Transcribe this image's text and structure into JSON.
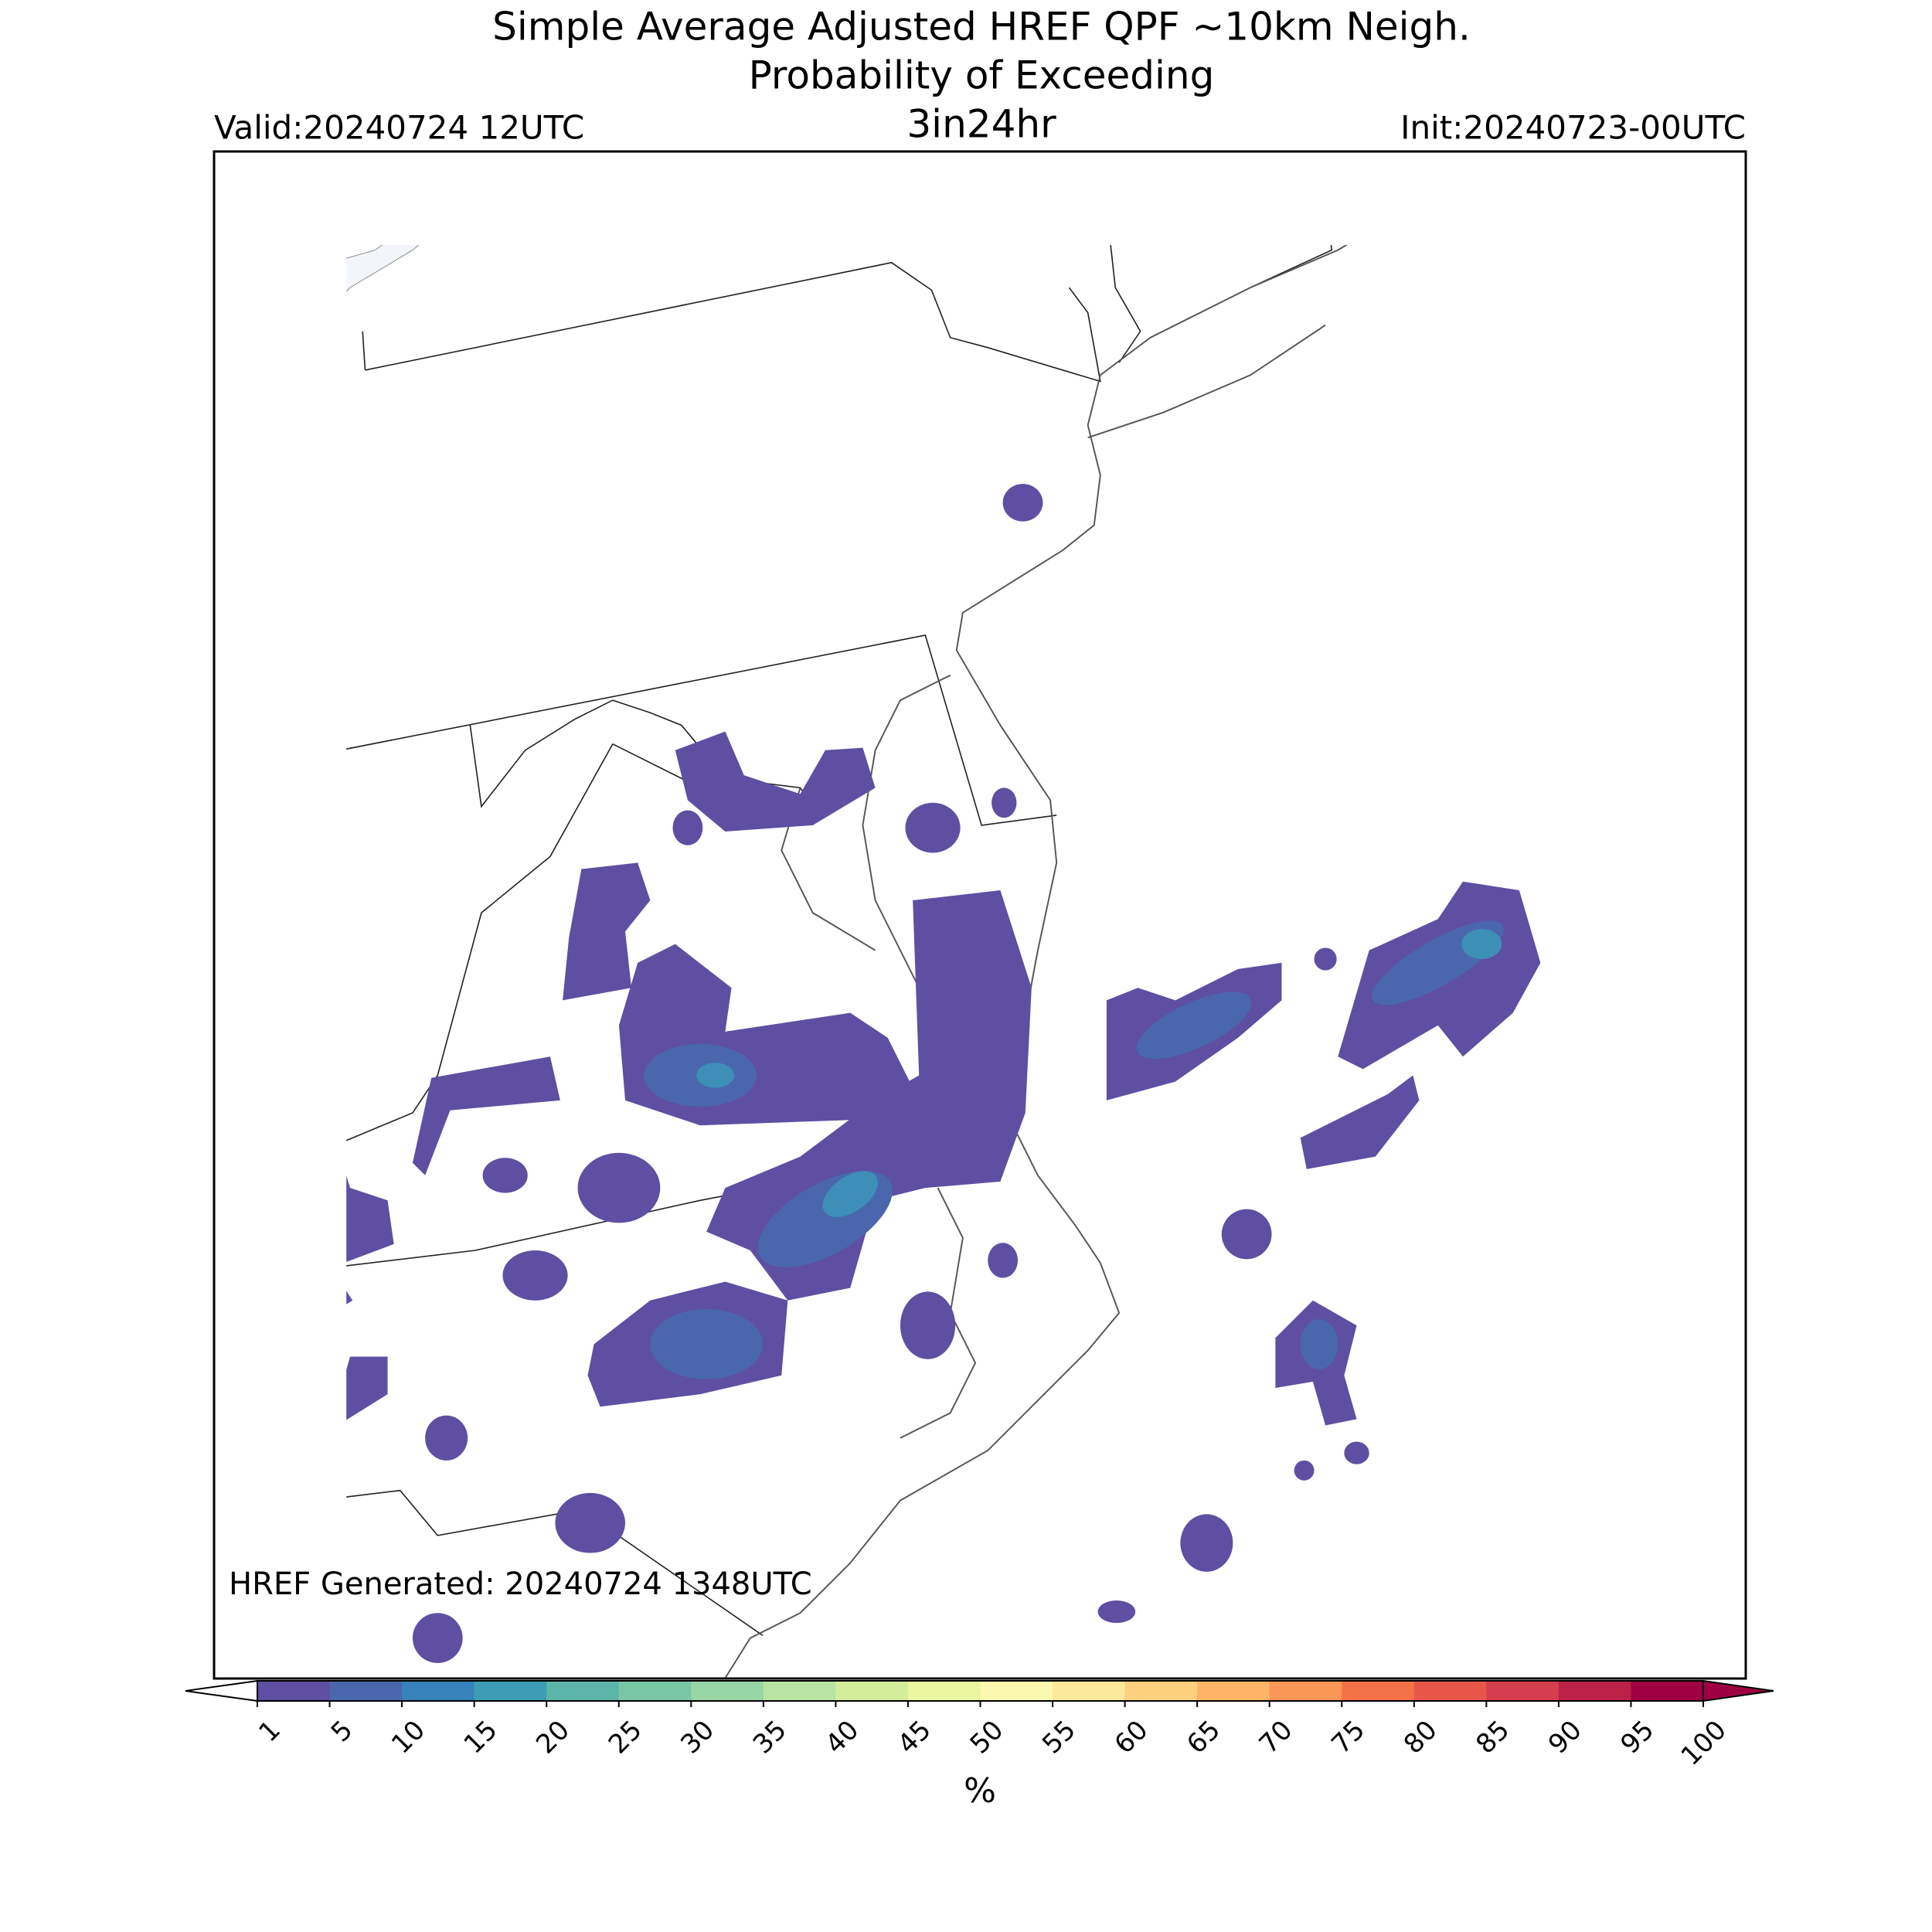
{
  "title": [
    "Simple Average Adjusted HREF QPF ~10km Neigh.",
    "Probability of Exceeding",
    "3in24hr"
  ],
  "valid": "Valid:20240724 12UTC",
  "init": "Init:20240723-00UTC",
  "generated": "HREF Generated: 20240724 1348UTC",
  "colorbar": {
    "label": "%",
    "ticks": [
      1,
      5,
      10,
      15,
      20,
      25,
      30,
      35,
      40,
      45,
      50,
      55,
      60,
      65,
      70,
      75,
      80,
      85,
      90,
      95,
      100
    ],
    "colors": [
      "#5e4fa2",
      "#4a67ae",
      "#3682ba",
      "#3d9db4",
      "#5bb5a9",
      "#78c6a6",
      "#98d5a4",
      "#b8e3a2",
      "#d4ed9b",
      "#ebf7a0",
      "#fbf8b0",
      "#fee89a",
      "#fed07e",
      "#fdb466",
      "#fa9656",
      "#f47245",
      "#e6574a",
      "#d53e4f",
      "#bb2149",
      "#9e0142"
    ],
    "over": "#9e0142"
  }
}
